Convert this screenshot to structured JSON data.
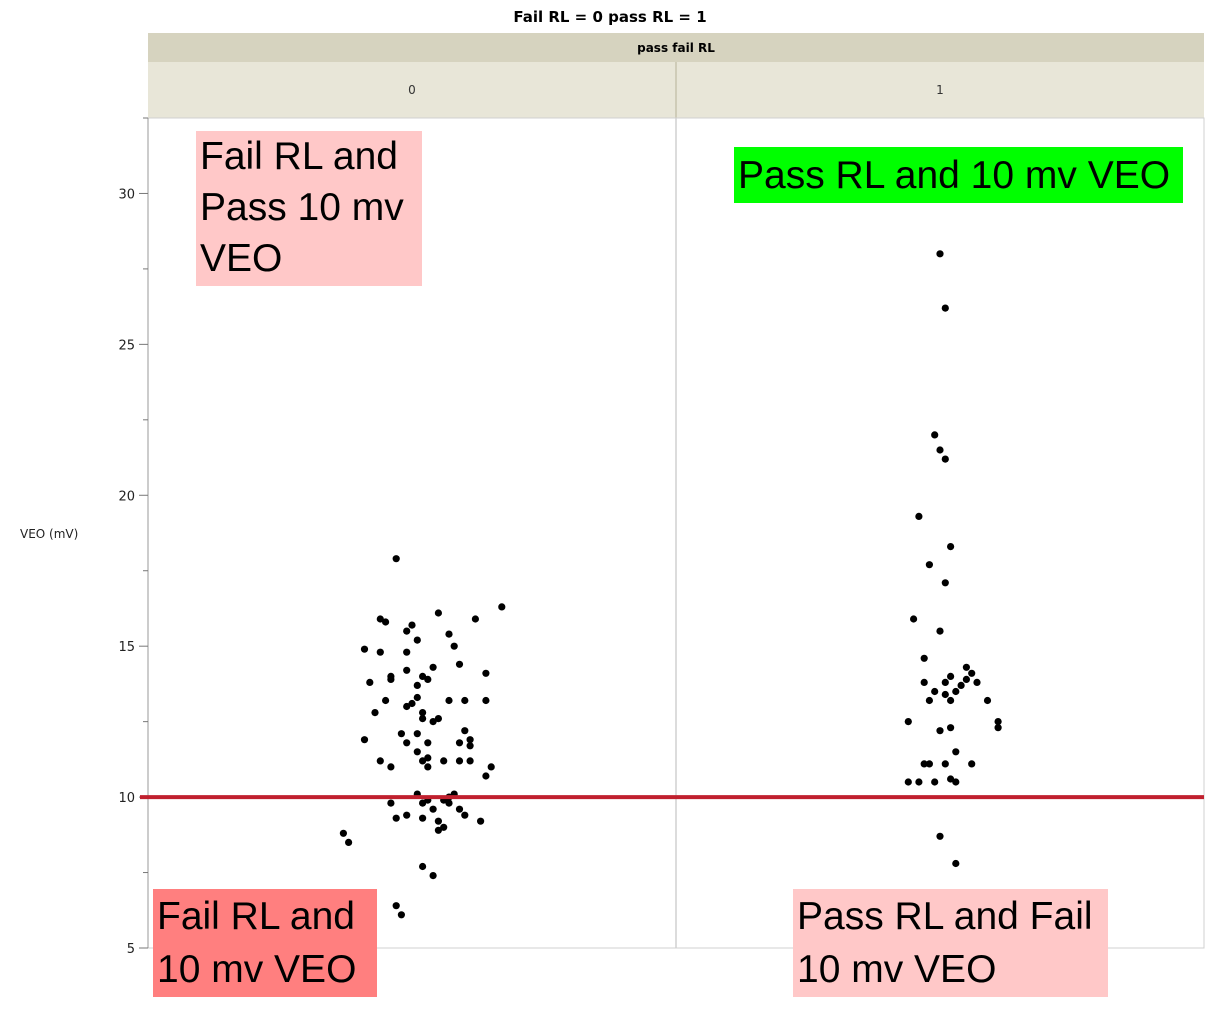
{
  "chart_data": {
    "type": "scatter",
    "title": "Fail RL = 0 pass RL = 1",
    "group_title": "pass fail RL",
    "groups": [
      "0",
      "1"
    ],
    "ylabel": "VEO (mV)",
    "ylim": [
      5,
      32.5
    ],
    "yticks": [
      5,
      10,
      15,
      20,
      25,
      30
    ],
    "reference_line": {
      "y": 10,
      "color": "#c0202e"
    },
    "series": [
      {
        "group": "0",
        "points": [
          [
            -0.13,
            8.8
          ],
          [
            -0.12,
            8.5
          ],
          [
            -0.09,
            14.9
          ],
          [
            -0.09,
            11.9
          ],
          [
            -0.08,
            13.8
          ],
          [
            -0.07,
            12.8
          ],
          [
            -0.06,
            11.2
          ],
          [
            -0.06,
            14.8
          ],
          [
            -0.06,
            15.9
          ],
          [
            -0.05,
            13.2
          ],
          [
            -0.04,
            14.0
          ],
          [
            -0.04,
            11.0
          ],
          [
            -0.04,
            13.9
          ],
          [
            -0.04,
            9.8
          ],
          [
            -0.03,
            6.4
          ],
          [
            -0.03,
            17.9
          ],
          [
            -0.03,
            9.3
          ],
          [
            -0.02,
            6.1
          ],
          [
            -0.02,
            12.1
          ],
          [
            -0.01,
            14.2
          ],
          [
            -0.01,
            15.5
          ],
          [
            -0.01,
            11.8
          ],
          [
            -0.01,
            13.0
          ],
          [
            -0.01,
            14.8
          ],
          [
            -0.01,
            9.4
          ],
          [
            0.0,
            15.7
          ],
          [
            0.0,
            13.1
          ],
          [
            0.01,
            13.3
          ],
          [
            0.01,
            12.1
          ],
          [
            0.01,
            15.2
          ],
          [
            0.01,
            13.7
          ],
          [
            0.01,
            11.5
          ],
          [
            0.01,
            10.1
          ],
          [
            0.02,
            9.3
          ],
          [
            0.02,
            11.2
          ],
          [
            0.02,
            14.0
          ],
          [
            0.02,
            7.7
          ],
          [
            0.02,
            9.8
          ],
          [
            0.02,
            12.8
          ],
          [
            0.02,
            12.6
          ],
          [
            0.03,
            13.9
          ],
          [
            0.03,
            11.8
          ],
          [
            0.03,
            11.3
          ],
          [
            0.03,
            11.0
          ],
          [
            0.03,
            9.9
          ],
          [
            0.04,
            14.3
          ],
          [
            0.04,
            12.5
          ],
          [
            0.04,
            9.6
          ],
          [
            0.04,
            7.4
          ],
          [
            0.05,
            12.6
          ],
          [
            0.05,
            8.9
          ],
          [
            0.05,
            9.2
          ],
          [
            0.06,
            11.2
          ],
          [
            0.06,
            9.0
          ],
          [
            0.06,
            9.9
          ],
          [
            0.07,
            15.4
          ],
          [
            0.07,
            13.2
          ],
          [
            0.07,
            10.0
          ],
          [
            0.07,
            9.8
          ],
          [
            0.08,
            15.0
          ],
          [
            0.08,
            10.1
          ],
          [
            0.09,
            14.4
          ],
          [
            0.09,
            11.8
          ],
          [
            0.09,
            11.2
          ],
          [
            0.09,
            9.6
          ],
          [
            0.1,
            13.2
          ],
          [
            0.1,
            12.2
          ],
          [
            0.1,
            9.4
          ],
          [
            0.11,
            11.9
          ],
          [
            0.11,
            11.2
          ],
          [
            0.11,
            11.7
          ],
          [
            0.12,
            15.9
          ],
          [
            0.13,
            9.2
          ],
          [
            0.14,
            13.2
          ],
          [
            0.14,
            14.1
          ],
          [
            0.14,
            10.7
          ],
          [
            0.15,
            11.0
          ],
          [
            0.17,
            16.3
          ],
          [
            0.05,
            16.1
          ],
          [
            -0.05,
            15.8
          ]
        ]
      },
      {
        "group": "1",
        "points": [
          [
            -0.06,
            10.5
          ],
          [
            -0.06,
            12.5
          ],
          [
            -0.05,
            15.9
          ],
          [
            -0.04,
            10.5
          ],
          [
            -0.04,
            19.3
          ],
          [
            -0.03,
            13.8
          ],
          [
            -0.03,
            11.1
          ],
          [
            -0.03,
            14.6
          ],
          [
            -0.02,
            17.7
          ],
          [
            -0.02,
            11.1
          ],
          [
            -0.02,
            13.2
          ],
          [
            -0.01,
            10.5
          ],
          [
            -0.01,
            22.0
          ],
          [
            -0.01,
            13.5
          ],
          [
            0.0,
            28.0
          ],
          [
            0.0,
            12.2
          ],
          [
            0.0,
            8.7
          ],
          [
            0.0,
            15.5
          ],
          [
            0.0,
            21.5
          ],
          [
            0.01,
            26.2
          ],
          [
            0.01,
            11.1
          ],
          [
            0.01,
            21.2
          ],
          [
            0.01,
            13.8
          ],
          [
            0.01,
            13.4
          ],
          [
            0.01,
            17.1
          ],
          [
            0.02,
            10.6
          ],
          [
            0.02,
            13.2
          ],
          [
            0.02,
            12.3
          ],
          [
            0.02,
            14.0
          ],
          [
            0.02,
            18.3
          ],
          [
            0.03,
            11.5
          ],
          [
            0.03,
            10.5
          ],
          [
            0.03,
            13.5
          ],
          [
            0.03,
            7.8
          ],
          [
            0.04,
            13.7
          ],
          [
            0.05,
            13.9
          ],
          [
            0.05,
            14.3
          ],
          [
            0.06,
            14.1
          ],
          [
            0.06,
            11.1
          ],
          [
            0.07,
            13.8
          ],
          [
            0.09,
            13.2
          ],
          [
            0.11,
            12.5
          ],
          [
            0.11,
            12.3
          ]
        ]
      }
    ],
    "annotations": [
      {
        "text_lines": [
          "Fail RL and",
          "Pass 10 mv",
          "VEO"
        ],
        "bg": "#ffc8c8"
      },
      {
        "text_lines": [
          "Pass RL and 10 mv VEO"
        ],
        "bg": "#00ff00"
      },
      {
        "text_lines": [
          "Fail RL and",
          " 10 mv VEO"
        ],
        "bg": "#ff7f7f"
      },
      {
        "text_lines": [
          "Pass RL and Fail",
          "10 mv VEO"
        ],
        "bg": "#ffc8c8"
      }
    ]
  }
}
